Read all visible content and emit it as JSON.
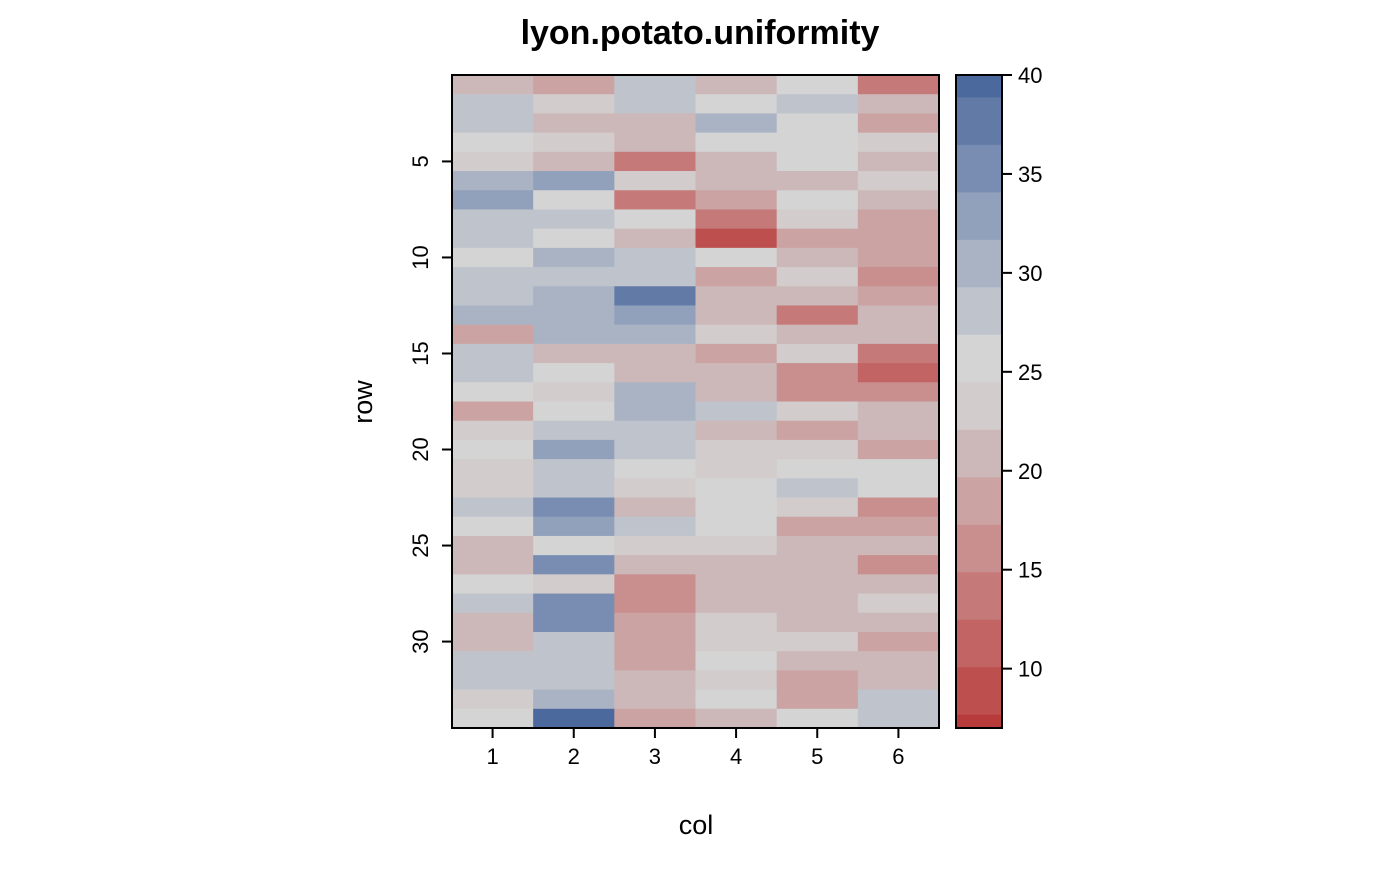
{
  "chart_data": {
    "type": "heatmap",
    "title": "lyon.potato.uniformity",
    "xlabel": "col",
    "ylabel": "row",
    "x": [
      1,
      2,
      3,
      4,
      5,
      6
    ],
    "y_range": [
      1,
      34
    ],
    "y_ticks": [
      5,
      10,
      15,
      20,
      25,
      30
    ],
    "colorbar": {
      "range": [
        7,
        40
      ],
      "ticks": [
        10,
        15,
        20,
        25,
        30,
        35,
        40
      ],
      "breaks": [
        7.7,
        10.1,
        12.5,
        14.9,
        17.3,
        19.7,
        22.1,
        24.5,
        26.9,
        29.3,
        31.7,
        34.1,
        36.5,
        38.9,
        41.3
      ],
      "colors": [
        "#b73b3b",
        "#bd4f4f",
        "#c26464",
        "#c67979",
        "#c98e8e",
        "#cba3a3",
        "#ccb8b8",
        "#d2cccc",
        "#d4d4d4",
        "#bfc4cc",
        "#aab3c3",
        "#91a0bb",
        "#788db1",
        "#617ba6",
        "#4b699c",
        "#36579a"
      ]
    },
    "values": [
      [
        21,
        19,
        27,
        21,
        26,
        14
      ],
      [
        27,
        23,
        27,
        26,
        28,
        21
      ],
      [
        27,
        20,
        20,
        31,
        25,
        19
      ],
      [
        25,
        23,
        20,
        25,
        25,
        23
      ],
      [
        23,
        20,
        14,
        20,
        25,
        21
      ],
      [
        30,
        33,
        23,
        20,
        21,
        23
      ],
      [
        33,
        25,
        14,
        19,
        25,
        21
      ],
      [
        27,
        27,
        25,
        14,
        23,
        19
      ],
      [
        27,
        25,
        21,
        10,
        19,
        19
      ],
      [
        25,
        30,
        27,
        25,
        20,
        19
      ],
      [
        27,
        28,
        27,
        18,
        23,
        16
      ],
      [
        27,
        30,
        38,
        20,
        20,
        18
      ],
      [
        30,
        30,
        33,
        20,
        14,
        20
      ],
      [
        18,
        30,
        30,
        23,
        20,
        20
      ],
      [
        27,
        20,
        20,
        18,
        23,
        13
      ],
      [
        27,
        25,
        20,
        20,
        15,
        12
      ],
      [
        26,
        23,
        30,
        20,
        17,
        15
      ],
      [
        18,
        25,
        30,
        28,
        23,
        20
      ],
      [
        23,
        28,
        28,
        20,
        18,
        20
      ],
      [
        26,
        33,
        28,
        23,
        23,
        18
      ],
      [
        23,
        28,
        26,
        23,
        25,
        25
      ],
      [
        23,
        28,
        23,
        25,
        28,
        25
      ],
      [
        28,
        35,
        20,
        25,
        23,
        15
      ],
      [
        26,
        33,
        27,
        25,
        18,
        18
      ],
      [
        21,
        26,
        23,
        23,
        20,
        20
      ],
      [
        21,
        35,
        20,
        20,
        20,
        15
      ],
      [
        26,
        23,
        17,
        20,
        20,
        20
      ],
      [
        28,
        35,
        15,
        20,
        20,
        23
      ],
      [
        21,
        35,
        18,
        23,
        20,
        20
      ],
      [
        21,
        28,
        18,
        23,
        23,
        18
      ],
      [
        27,
        28,
        18,
        25,
        20,
        20
      ],
      [
        27,
        28,
        20,
        23,
        18,
        20
      ],
      [
        23,
        31,
        20,
        25,
        18,
        27
      ],
      [
        26,
        40,
        19,
        20,
        25,
        27
      ]
    ]
  }
}
